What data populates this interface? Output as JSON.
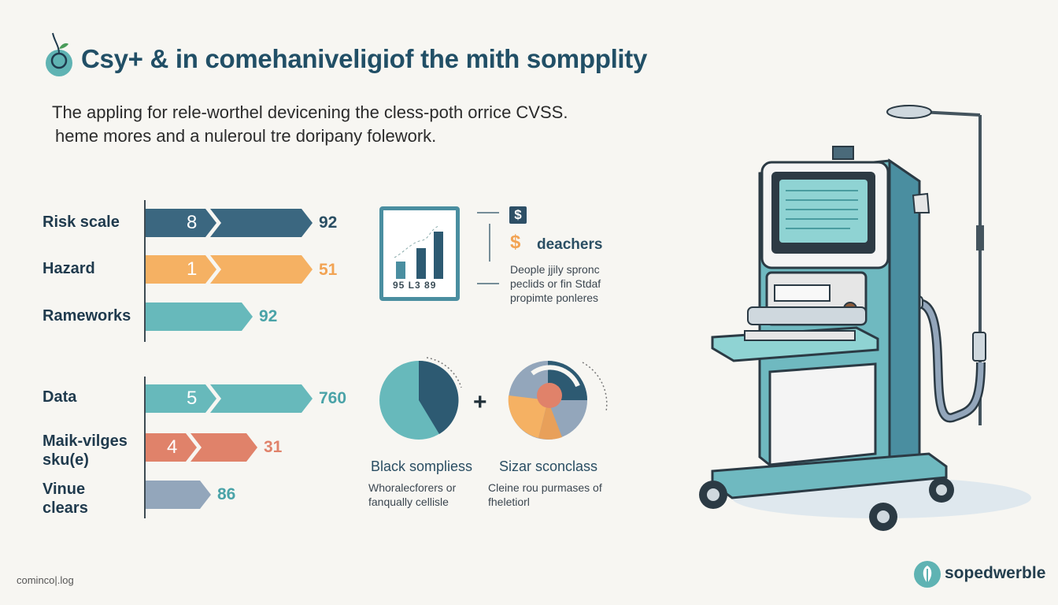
{
  "header": {
    "title": "Csy+ & in comehaniveligiof the mith sompplity",
    "subtitle_line1": "The appling for rele-worthel devicening the cless-poth orrice CVSS.",
    "subtitle_line2": "heme mores and a nuleroul tre doripany folework."
  },
  "colors": {
    "navy": "#3b6780",
    "orange": "#f5b163",
    "teal": "#67b9bb",
    "coral": "#e0826a",
    "slate": "#93a6bb"
  },
  "bars_top": [
    {
      "label": "Risk scale",
      "number": "8",
      "value": "92",
      "color": "#3b6780",
      "value_color": "#2a4e63",
      "fill": 1.0
    },
    {
      "label": "Hazard",
      "number": "1",
      "value": "51",
      "color": "#f5b163",
      "value_color": "#f2a353",
      "fill": 1.0
    },
    {
      "label": "Rameworks",
      "number": "",
      "value": "92",
      "color": "#67b9bb",
      "value_color": "#4aa3a8",
      "fill": 0.64
    }
  ],
  "bars_bottom": [
    {
      "label_line1": "Data",
      "label_line2": "",
      "number": "5",
      "value": "760",
      "color": "#67b9bb",
      "value_color": "#4aa3a8",
      "fill": 1.0
    },
    {
      "label_line1": "Maik-vilges",
      "label_line2": "sku(e)",
      "number": "4",
      "value": "31",
      "color": "#e0826a",
      "value_color": "#e0826a",
      "fill": 0.67
    },
    {
      "label_line1": "Vinue",
      "label_line2": "clears",
      "number": "",
      "value": "86",
      "color": "#93a6bb",
      "value_color": "#4aa3a8",
      "fill": 0.39
    }
  ],
  "info_panel": {
    "bar_labels": "95 L3 89",
    "icon_symbol": "$",
    "dollar_symbol": "$",
    "heading": "deachers",
    "desc_lines": [
      "Deople jjily spronc",
      "peclids or fin Stdaf",
      "propimte ponleres"
    ]
  },
  "pies": [
    {
      "title": "Black sompliess",
      "desc_lines": [
        "Whoralecforers or",
        "fanqually cellisle"
      ]
    },
    {
      "title": "Sizar sconclass",
      "desc_lines": [
        "Cleine rou purmases of",
        "fheletiorl"
      ]
    }
  ],
  "plus_symbol": "+",
  "footer": {
    "left_text": "cominco|.log",
    "brand": "sopedwerble"
  }
}
